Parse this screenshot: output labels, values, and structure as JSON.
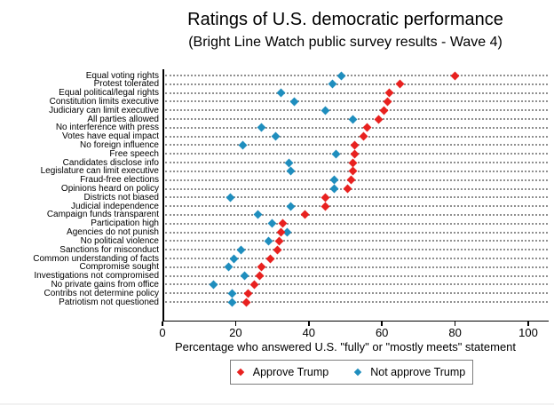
{
  "title": "Ratings of U.S. democratic performance",
  "subtitle": "(Bright Line Watch public survey results - Wave 4)",
  "chart_data": {
    "type": "scatter",
    "subtype": "horizontal-dot-plot",
    "title": "Ratings of U.S. democratic performance",
    "subtitle": "(Bright Line Watch public survey results - Wave 4)",
    "xlabel": "Percentage who answered U.S. \"fully\" or \"mostly meets\" statement",
    "xlim": [
      0,
      105
    ],
    "xticks": [
      0,
      20,
      40,
      60,
      80,
      100
    ],
    "grid": "horizontal dotted line per category",
    "legend_position": "bottom",
    "marker_shape": "diamond",
    "categories": [
      "Equal voting rights",
      "Protest tolerated",
      "Equal political/legal rights",
      "Constitution limits executive",
      "Judiciary can limit executive",
      "All parties allowed",
      "No interference with press",
      "Votes have equal impact",
      "No foreign influence",
      "Free speech",
      "Candidates disclose info",
      "Legislature can limit executive",
      "Fraud-free elections",
      "Opinions heard on policy",
      "Districts not biased",
      "Judicial independence",
      "Campaign funds transparent",
      "Participation high",
      "Agencies do not punish",
      "No political violence",
      "Sanctions for misconduct",
      "Common understanding of facts",
      "Compromise sought",
      "Investigations not compromised",
      "No private gains from office",
      "Contribs not determine policy",
      "Patriotism not questioned"
    ],
    "series": [
      {
        "name": "Not approve Trump",
        "color": "#1f8ebe",
        "values": [
          49,
          46.5,
          32.5,
          36,
          44.5,
          52,
          27,
          31,
          22,
          47.5,
          34.5,
          35,
          47,
          47,
          18.5,
          35,
          26,
          30,
          34,
          29,
          21.5,
          19.5,
          18,
          22.5,
          14,
          19,
          19
        ]
      },
      {
        "name": "Approve Trump",
        "color": "#e8211f",
        "values": [
          80,
          65,
          62,
          61.5,
          60.5,
          59,
          56,
          55,
          52.5,
          52.5,
          52,
          52,
          51.5,
          50.5,
          44.5,
          44.5,
          39,
          33,
          32.5,
          32,
          31.5,
          29.5,
          27,
          26.5,
          25,
          23.5,
          23
        ]
      }
    ],
    "legend_order": [
      "Approve Trump",
      "Not approve Trump"
    ]
  }
}
